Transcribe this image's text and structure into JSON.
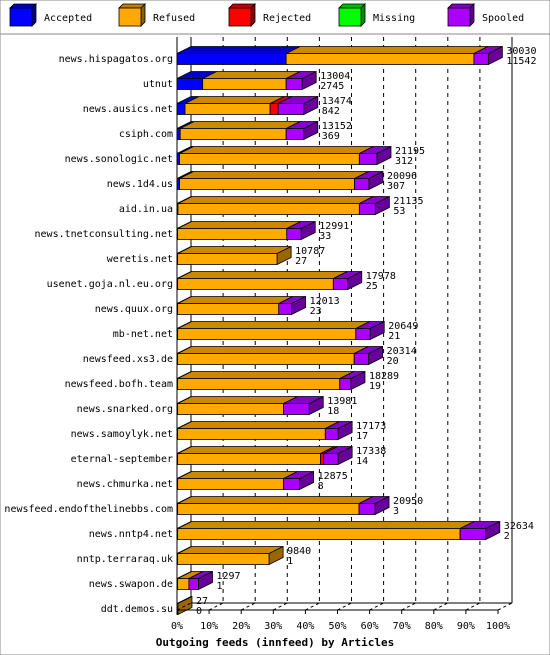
{
  "chart_data": {
    "type": "bar",
    "orientation": "horizontal",
    "stacked": true,
    "three_d": true,
    "xlabel": "Outgoing feeds (innfeed) by Articles",
    "x_ticks": [
      "0%",
      "10%",
      "20%",
      "30%",
      "40%",
      "50%",
      "60%",
      "70%",
      "80%",
      "90%",
      "100%"
    ],
    "xlim": [
      0,
      100
    ],
    "legend_position": "top",
    "series": [
      {
        "name": "Accepted",
        "color": "#0000ff"
      },
      {
        "name": "Refused",
        "color": "#ffaa00"
      },
      {
        "name": "Rejected",
        "color": "#ff0000"
      },
      {
        "name": "Missing",
        "color": "#00ff00"
      },
      {
        "name": "Spooled",
        "color": "#aa00ff"
      }
    ],
    "rows": [
      {
        "label": "news.hispagatos.org",
        "offered": "30030",
        "accepted": "11542",
        "pct": [
          34,
          58.5,
          0,
          0,
          4.5
        ]
      },
      {
        "label": "utnut",
        "offered": "13004",
        "accepted": "2745",
        "pct": [
          8,
          26,
          0,
          0,
          5
        ]
      },
      {
        "label": "news.ausics.net",
        "offered": "13474",
        "accepted": "842",
        "pct": [
          2.5,
          26.5,
          2.5,
          0,
          8
        ]
      },
      {
        "label": "csiph.com",
        "offered": "13152",
        "accepted": "369",
        "pct": [
          1,
          33,
          0,
          0,
          5.5
        ]
      },
      {
        "label": "news.sonologic.net",
        "offered": "21195",
        "accepted": "312",
        "pct": [
          0.8,
          56,
          0,
          0,
          5.5
        ]
      },
      {
        "label": "news.1d4.us",
        "offered": "20096",
        "accepted": "307",
        "pct": [
          0.8,
          54.5,
          0,
          0,
          4.5
        ]
      },
      {
        "label": "aid.in.ua",
        "offered": "21135",
        "accepted": "53",
        "pct": [
          0.3,
          56.5,
          0,
          0,
          5
        ]
      },
      {
        "label": "news.tnetconsulting.net",
        "offered": "12991",
        "accepted": "33",
        "pct": [
          0.2,
          34,
          0,
          0,
          4.5
        ]
      },
      {
        "label": "weretis.net",
        "offered": "10787",
        "accepted": "27",
        "pct": [
          0.2,
          31,
          0,
          0,
          0
        ]
      },
      {
        "label": "usenet.goja.nl.eu.org",
        "offered": "17978",
        "accepted": "25",
        "pct": [
          0.2,
          48.5,
          0,
          0,
          4.5
        ]
      },
      {
        "label": "news.quux.org",
        "offered": "12013",
        "accepted": "23",
        "pct": [
          0.2,
          31.5,
          0,
          0,
          4
        ]
      },
      {
        "label": "mb-net.net",
        "offered": "20649",
        "accepted": "21",
        "pct": [
          0.2,
          55.5,
          0,
          0,
          4.5
        ]
      },
      {
        "label": "newsfeed.xs3.de",
        "offered": "20314",
        "accepted": "20",
        "pct": [
          0.2,
          55,
          0,
          0,
          4.5
        ]
      },
      {
        "label": "newsfeed.bofh.team",
        "offered": "18289",
        "accepted": "19",
        "pct": [
          0.2,
          50.5,
          0,
          0,
          3.5
        ]
      },
      {
        "label": "news.snarked.org",
        "offered": "13981",
        "accepted": "18",
        "pct": [
          0.2,
          33,
          0,
          0,
          8
        ]
      },
      {
        "label": "news.samoylyk.net",
        "offered": "17173",
        "accepted": "17",
        "pct": [
          0.2,
          46,
          0,
          0,
          4
        ]
      },
      {
        "label": "eternal-september",
        "offered": "17338",
        "accepted": "14",
        "pct": [
          0.2,
          44.5,
          1,
          0,
          4.5
        ]
      },
      {
        "label": "news.chmurka.net",
        "offered": "12875",
        "accepted": "8",
        "pct": [
          0.2,
          33,
          0,
          0,
          5
        ]
      },
      {
        "label": "newsfeed.endofthelinebbs.com",
        "offered": "20950",
        "accepted": "3",
        "pct": [
          0.2,
          56.5,
          0,
          0,
          5
        ]
      },
      {
        "label": "news.nntp4.net",
        "offered": "32634",
        "accepted": "2",
        "pct": [
          0.2,
          88,
          0,
          0,
          8
        ]
      },
      {
        "label": "nntp.terraraq.uk",
        "offered": "9840",
        "accepted": "1",
        "pct": [
          0.2,
          28.5,
          0,
          0,
          0
        ]
      },
      {
        "label": "news.swapon.de",
        "offered": "1297",
        "accepted": "1",
        "pct": [
          0.2,
          3.5,
          0,
          0,
          3
        ]
      },
      {
        "label": "ddt.demos.su",
        "offered": "27",
        "accepted": "0",
        "pct": [
          0,
          0.3,
          0,
          0,
          0
        ]
      }
    ]
  }
}
